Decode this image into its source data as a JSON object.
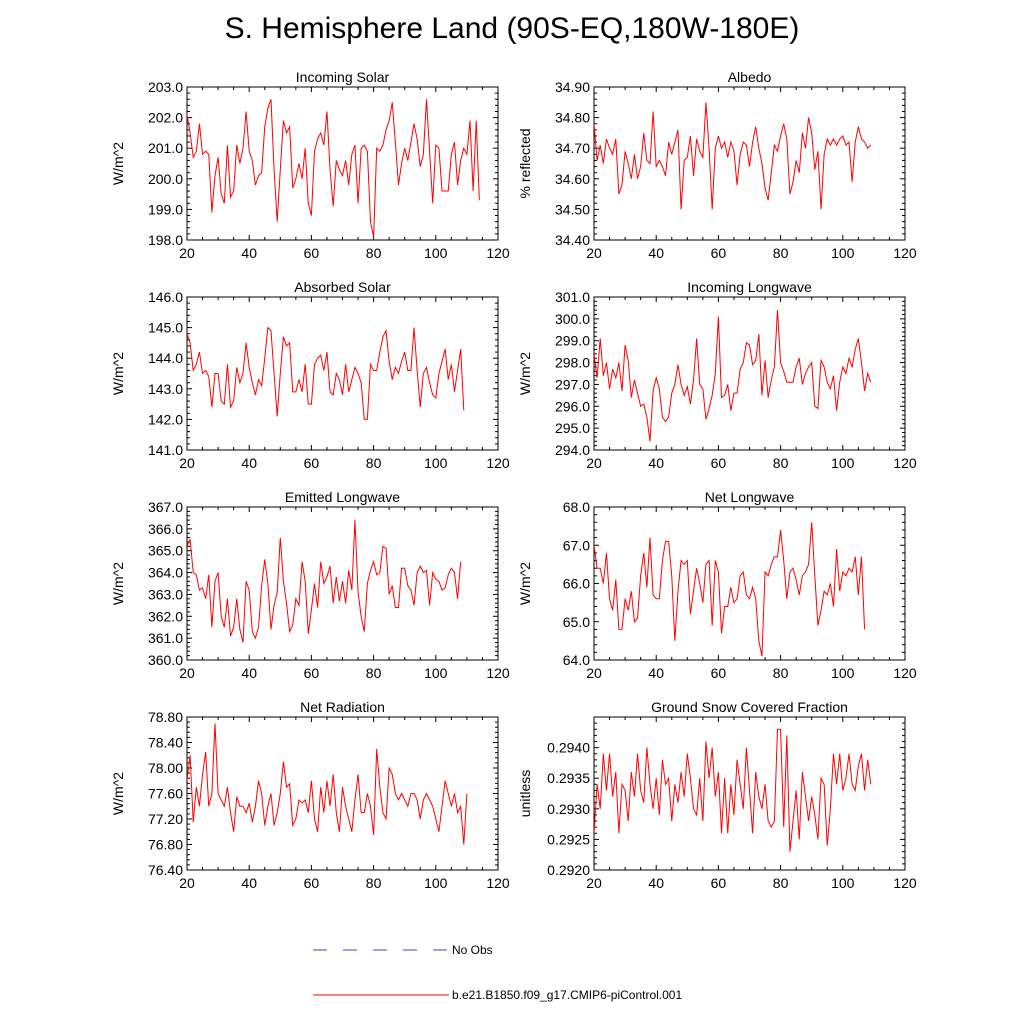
{
  "title": "S. Hemisphere Land (90S-EQ,180W-180E)",
  "colors": {
    "model": "#ff0000",
    "obs": "#4040c0",
    "axis": "#000000"
  },
  "legend": {
    "obs_label": "No Obs",
    "model_label": "b.e21.B1850.f09_g17.CMIP6-piControl.001"
  },
  "chart_data": [
    {
      "type": "line",
      "title": "Incoming Solar",
      "ylabel": "W/m^2",
      "xlim": [
        20,
        120
      ],
      "ylim": [
        198.0,
        203.0
      ],
      "xticks": [
        "20",
        "40",
        "60",
        "80",
        "100",
        "120"
      ],
      "yticks": [
        "198.0",
        "199.0",
        "200.0",
        "201.0",
        "202.0",
        "203.0"
      ],
      "x_start": 20,
      "values": [
        202.1,
        201.5,
        200.7,
        200.9,
        201.8,
        200.8,
        200.9,
        200.8,
        198.9,
        200.1,
        200.7,
        199.5,
        199.2,
        201.1,
        199.4,
        199.6,
        201.1,
        200.5,
        201.0,
        202.2,
        200.9,
        200.6,
        199.8,
        200.1,
        200.2,
        201.7,
        202.3,
        202.6,
        200.3,
        198.6,
        200.3,
        201.9,
        201.5,
        201.7,
        199.7,
        200.0,
        200.5,
        200.0,
        201.0,
        199.2,
        198.8,
        200.9,
        201.3,
        201.5,
        201.1,
        202.2,
        200.3,
        199.1,
        200.6,
        200.3,
        200.1,
        200.6,
        199.8,
        200.8,
        201.1,
        199.2,
        201.0,
        201.1,
        200.9,
        198.6,
        198.1,
        201.0,
        200.9,
        201.1,
        201.6,
        201.9,
        202.5,
        201.2,
        199.8,
        200.5,
        201.0,
        200.6,
        201.2,
        201.8,
        201.3,
        200.4,
        200.8,
        202.6,
        200.9,
        199.2,
        201.1,
        201.0,
        199.6,
        199.6,
        199.6,
        200.8,
        201.2,
        199.8,
        200.6,
        201.0,
        200.8,
        201.9,
        199.6,
        201.9,
        199.3
      ]
    },
    {
      "type": "line",
      "title": "Albedo",
      "ylabel": "% reflected",
      "xlim": [
        20,
        120
      ],
      "ylim": [
        34.4,
        34.9
      ],
      "xticks": [
        "20",
        "40",
        "60",
        "80",
        "100",
        "120"
      ],
      "yticks": [
        "34.40",
        "34.50",
        "34.60",
        "34.70",
        "34.80",
        "34.90"
      ],
      "x_start": 20,
      "values": [
        34.78,
        34.66,
        34.71,
        34.65,
        34.73,
        34.7,
        34.68,
        34.73,
        34.55,
        34.58,
        34.69,
        34.65,
        34.6,
        34.68,
        34.6,
        34.64,
        34.75,
        34.66,
        34.65,
        34.82,
        34.64,
        34.66,
        34.64,
        34.61,
        34.72,
        34.68,
        34.72,
        34.76,
        34.5,
        34.66,
        34.67,
        34.74,
        34.61,
        34.73,
        34.69,
        34.67,
        34.85,
        34.7,
        34.5,
        34.7,
        34.74,
        34.7,
        34.72,
        34.67,
        34.72,
        34.69,
        34.58,
        34.68,
        34.72,
        34.71,
        34.64,
        34.72,
        34.77,
        34.7,
        34.65,
        34.57,
        34.53,
        34.62,
        34.71,
        34.69,
        34.74,
        34.78,
        34.73,
        34.55,
        34.59,
        34.66,
        34.62,
        34.75,
        34.7,
        34.8,
        34.75,
        34.63,
        34.69,
        34.5,
        34.68,
        34.73,
        34.71,
        34.73,
        34.71,
        34.73,
        34.74,
        34.71,
        34.72,
        34.59,
        34.72,
        34.77,
        34.73,
        34.72,
        34.7,
        34.71
      ]
    },
    {
      "type": "line",
      "title": "Absorbed Solar",
      "ylabel": "W/m^2",
      "xlim": [
        20,
        120
      ],
      "ylim": [
        141.0,
        146.0
      ],
      "xticks": [
        "20",
        "40",
        "60",
        "80",
        "100",
        "120"
      ],
      "yticks": [
        "141.0",
        "142.0",
        "143.0",
        "144.0",
        "145.0",
        "146.0"
      ],
      "x_start": 20,
      "values": [
        144.8,
        144.5,
        143.6,
        143.8,
        144.2,
        143.5,
        143.6,
        143.4,
        142.4,
        143.5,
        143.5,
        142.6,
        142.5,
        143.8,
        142.4,
        142.6,
        143.7,
        143.2,
        143.5,
        144.5,
        143.7,
        143.2,
        142.8,
        143.3,
        143.1,
        144.0,
        145.0,
        144.9,
        143.5,
        142.1,
        143.5,
        144.7,
        144.4,
        144.5,
        142.9,
        142.9,
        143.3,
        142.9,
        143.8,
        142.5,
        142.5,
        143.8,
        144.0,
        144.1,
        143.6,
        144.2,
        142.9,
        142.8,
        143.5,
        143.3,
        142.8,
        143.8,
        142.9,
        143.3,
        143.7,
        143.5,
        143.2,
        142.0,
        142.0,
        143.8,
        143.6,
        143.6,
        144.2,
        144.7,
        144.9,
        143.9,
        143.3,
        143.7,
        143.5,
        143.9,
        144.2,
        143.6,
        143.6,
        145.0,
        143.6,
        142.4,
        143.5,
        143.7,
        143.2,
        142.8,
        142.7,
        143.5,
        143.9,
        144.3,
        143.3,
        143.8,
        142.9,
        143.6,
        144.3,
        142.3
      ]
    },
    {
      "type": "line",
      "title": "Incoming Longwave",
      "ylabel": "W/m^2",
      "xlim": [
        20,
        120
      ],
      "ylim": [
        294.0,
        301.0
      ],
      "xticks": [
        "20",
        "40",
        "60",
        "80",
        "100",
        "120"
      ],
      "yticks": [
        "294.0",
        "295.0",
        "296.0",
        "297.0",
        "298.0",
        "299.0",
        "300.0",
        "301.0"
      ],
      "x_start": 20,
      "values": [
        298.4,
        297.3,
        299.1,
        297.4,
        298.0,
        296.8,
        297.7,
        297.3,
        298.0,
        296.7,
        298.8,
        298.1,
        296.4,
        297.2,
        296.6,
        296.0,
        296.1,
        295.5,
        294.4,
        296.7,
        297.3,
        296.8,
        295.5,
        295.3,
        295.5,
        296.6,
        297.0,
        297.9,
        297.0,
        296.5,
        296.9,
        296.1,
        297.2,
        299.1,
        297.0,
        296.8,
        295.4,
        295.9,
        296.5,
        297.5,
        300.1,
        296.4,
        296.5,
        297.0,
        295.8,
        296.6,
        296.6,
        297.7,
        298.0,
        298.9,
        298.8,
        297.9,
        298.1,
        299.3,
        296.5,
        298.1,
        296.4,
        297.2,
        297.8,
        300.4,
        298.0,
        297.6,
        297.1,
        297.1,
        297.1,
        297.8,
        298.2,
        297.0,
        297.5,
        297.8,
        298.0,
        296.0,
        295.9,
        298.1,
        297.8,
        297.1,
        296.8,
        297.4,
        295.8,
        297.1,
        297.8,
        297.5,
        298.2,
        297.8,
        298.6,
        299.1,
        298.0,
        296.7,
        297.5,
        297.1
      ]
    },
    {
      "type": "line",
      "title": "Emitted Longwave",
      "ylabel": "W/m^2",
      "xlim": [
        20,
        120
      ],
      "ylim": [
        360.0,
        367.0
      ],
      "xticks": [
        "20",
        "40",
        "60",
        "80",
        "100",
        "120"
      ],
      "yticks": [
        "360.0",
        "361.0",
        "362.0",
        "363.0",
        "364.0",
        "365.0",
        "366.0",
        "367.0"
      ],
      "x_start": 20,
      "values": [
        365.2,
        365.5,
        364.0,
        363.9,
        363.2,
        363.3,
        362.8,
        363.9,
        361.5,
        363.6,
        364.0,
        362.0,
        361.5,
        362.8,
        361.1,
        361.5,
        362.8,
        361.4,
        360.8,
        363.6,
        363.2,
        361.3,
        361.0,
        361.5,
        363.4,
        364.6,
        363.5,
        361.4,
        362.5,
        363.1,
        365.6,
        363.6,
        362.6,
        361.3,
        361.6,
        362.8,
        362.5,
        364.5,
        363.6,
        361.2,
        362.3,
        363.5,
        362.4,
        364.5,
        363.5,
        363.8,
        364.3,
        362.6,
        363.8,
        362.7,
        363.6,
        362.6,
        364.1,
        363.2,
        366.4,
        363.1,
        362.0,
        361.3,
        363.5,
        364.1,
        364.5,
        363.9,
        364.0,
        365.2,
        365.1,
        363.0,
        363.4,
        362.4,
        362.4,
        364.2,
        364.2,
        363.4,
        363.2,
        362.5,
        364.0,
        364.3,
        364.0,
        364.1,
        362.5,
        364.0,
        363.7,
        363.6,
        363.2,
        363.3,
        363.9,
        364.2,
        364.0,
        362.8,
        364.5
      ]
    },
    {
      "type": "line",
      "title": "Net Longwave",
      "ylabel": "W/m^2",
      "xlim": [
        20,
        120
      ],
      "ylim": [
        64.0,
        68.0
      ],
      "xticks": [
        "20",
        "40",
        "60",
        "80",
        "100",
        "120"
      ],
      "yticks": [
        "64.0",
        "65.0",
        "66.0",
        "67.0",
        "68.0"
      ],
      "x_start": 20,
      "values": [
        67.0,
        66.4,
        66.4,
        66.0,
        66.8,
        65.6,
        65.3,
        66.1,
        64.8,
        64.8,
        65.6,
        65.3,
        65.8,
        65.0,
        65.1,
        66.2,
        66.8,
        65.9,
        67.2,
        65.7,
        65.6,
        65.6,
        66.6,
        67.1,
        67.1,
        66.2,
        64.5,
        65.8,
        66.6,
        66.5,
        66.6,
        65.2,
        65.8,
        66.4,
        66.0,
        65.5,
        66.5,
        66.6,
        64.9,
        66.6,
        66.3,
        64.7,
        65.4,
        65.4,
        65.9,
        65.5,
        65.6,
        66.2,
        66.3,
        65.7,
        65.6,
        65.9,
        65.6,
        64.5,
        64.1,
        66.3,
        66.2,
        66.5,
        66.7,
        66.7,
        67.4,
        66.6,
        65.6,
        66.3,
        66.4,
        66.1,
        65.7,
        66.2,
        66.3,
        66.5,
        67.6,
        66.2,
        64.9,
        65.3,
        65.8,
        65.7,
        66.0,
        65.4,
        66.9,
        65.8,
        66.3,
        66.2,
        66.4,
        66.3,
        66.7,
        65.7,
        66.7,
        64.8
      ]
    },
    {
      "type": "line",
      "title": "Net Radiation",
      "ylabel": "W/m^2",
      "xlim": [
        20,
        120
      ],
      "ylim": [
        76.4,
        78.8
      ],
      "xticks": [
        "20",
        "40",
        "60",
        "80",
        "100",
        "120"
      ],
      "yticks": [
        "76.40",
        "76.80",
        "77.20",
        "77.60",
        "78.00",
        "78.40",
        "78.80"
      ],
      "x_start": 20,
      "values": [
        77.8,
        78.2,
        77.15,
        77.7,
        77.4,
        77.9,
        78.25,
        77.4,
        77.6,
        78.7,
        77.6,
        77.5,
        77.4,
        77.7,
        77.3,
        77.0,
        77.55,
        77.4,
        77.4,
        77.3,
        77.45,
        77.15,
        77.4,
        77.8,
        77.6,
        77.1,
        77.4,
        77.6,
        77.1,
        77.3,
        77.6,
        78.1,
        77.7,
        77.75,
        77.1,
        77.2,
        77.5,
        77.45,
        77.5,
        77.3,
        77.8,
        77.2,
        77.0,
        77.7,
        77.3,
        77.8,
        77.4,
        77.9,
        77.3,
        77.0,
        77.7,
        77.4,
        77.2,
        77.0,
        77.5,
        77.9,
        77.3,
        77.3,
        77.6,
        77.4,
        76.95,
        78.3,
        77.7,
        77.3,
        77.2,
        78.0,
        77.9,
        77.6,
        77.5,
        77.6,
        77.5,
        77.4,
        77.6,
        77.6,
        77.5,
        77.2,
        77.5,
        77.6,
        77.5,
        77.4,
        77.2,
        77.0,
        77.4,
        77.8,
        77.6,
        77.4,
        77.6,
        77.3,
        77.4,
        76.8,
        77.6
      ]
    },
    {
      "type": "line",
      "title": "Ground Snow Covered Fraction",
      "ylabel": "unitless",
      "xlim": [
        20,
        120
      ],
      "ylim": [
        0.292,
        0.2945
      ],
      "xticks": [
        "20",
        "40",
        "60",
        "80",
        "100",
        "120"
      ],
      "yticks": [
        "0.2920",
        "0.2925",
        "0.2930",
        "0.2935",
        "0.2940"
      ],
      "x_start": 20,
      "values": [
        0.2926,
        0.2934,
        0.293,
        0.2939,
        0.2933,
        0.2939,
        0.2932,
        0.2936,
        0.2926,
        0.2934,
        0.2933,
        0.2928,
        0.2936,
        0.2932,
        0.2939,
        0.2933,
        0.2931,
        0.294,
        0.2934,
        0.293,
        0.2935,
        0.2929,
        0.2938,
        0.2934,
        0.2935,
        0.2928,
        0.2934,
        0.2931,
        0.2936,
        0.2932,
        0.2939,
        0.2935,
        0.293,
        0.2929,
        0.2935,
        0.2928,
        0.2941,
        0.2935,
        0.294,
        0.2932,
        0.2936,
        0.2926,
        0.2935,
        0.2926,
        0.2934,
        0.2929,
        0.2938,
        0.2934,
        0.293,
        0.294,
        0.2933,
        0.2926,
        0.2936,
        0.2932,
        0.293,
        0.2934,
        0.2928,
        0.2927,
        0.2928,
        0.2943,
        0.2943,
        0.2927,
        0.2942,
        0.2923,
        0.2928,
        0.2933,
        0.2925,
        0.2936,
        0.2932,
        0.2928,
        0.2932,
        0.2929,
        0.2925,
        0.2935,
        0.2934,
        0.2924,
        0.293,
        0.2939,
        0.2934,
        0.2939,
        0.2933,
        0.2935,
        0.2939,
        0.2934,
        0.2933,
        0.2937,
        0.2939,
        0.2933,
        0.2938,
        0.2934
      ]
    }
  ]
}
